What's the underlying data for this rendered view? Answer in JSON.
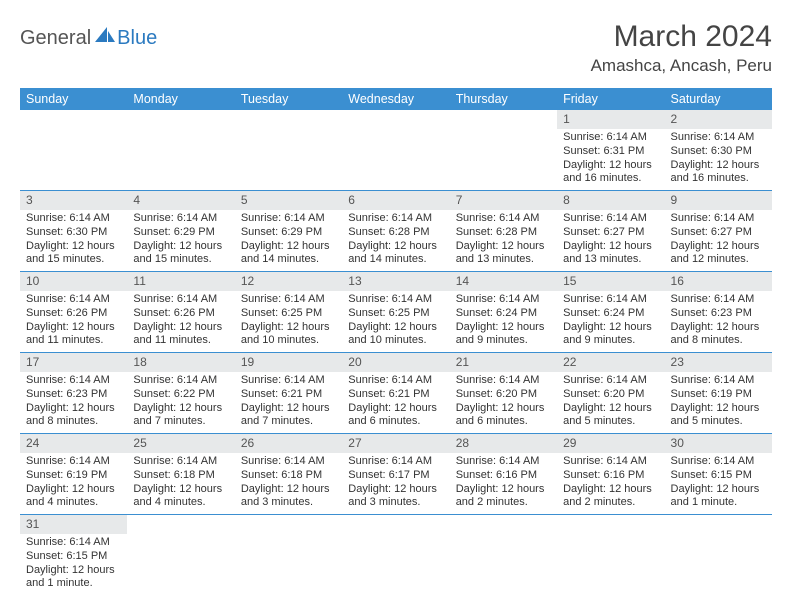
{
  "logo": {
    "text1": "General",
    "text2": "Blue"
  },
  "title": "March 2024",
  "location": "Amashca, Ancash, Peru",
  "colors": {
    "header_bg": "#3b8fd1",
    "header_text": "#ffffff",
    "daynum_bg": "#e7e9ea",
    "cell_border": "#3b8fd1",
    "logo_blue": "#2b7ac0"
  },
  "typography": {
    "title_fontsize": 30,
    "location_fontsize": 17,
    "header_fontsize": 12.5,
    "cell_fontsize": 11
  },
  "weekdays": [
    "Sunday",
    "Monday",
    "Tuesday",
    "Wednesday",
    "Thursday",
    "Friday",
    "Saturday"
  ],
  "weeks": [
    [
      {
        "day": "",
        "sunrise": "",
        "sunset": "",
        "daylight1": "",
        "daylight2": ""
      },
      {
        "day": "",
        "sunrise": "",
        "sunset": "",
        "daylight1": "",
        "daylight2": ""
      },
      {
        "day": "",
        "sunrise": "",
        "sunset": "",
        "daylight1": "",
        "daylight2": ""
      },
      {
        "day": "",
        "sunrise": "",
        "sunset": "",
        "daylight1": "",
        "daylight2": ""
      },
      {
        "day": "",
        "sunrise": "",
        "sunset": "",
        "daylight1": "",
        "daylight2": ""
      },
      {
        "day": "1",
        "sunrise": "Sunrise: 6:14 AM",
        "sunset": "Sunset: 6:31 PM",
        "daylight1": "Daylight: 12 hours",
        "daylight2": "and 16 minutes."
      },
      {
        "day": "2",
        "sunrise": "Sunrise: 6:14 AM",
        "sunset": "Sunset: 6:30 PM",
        "daylight1": "Daylight: 12 hours",
        "daylight2": "and 16 minutes."
      }
    ],
    [
      {
        "day": "3",
        "sunrise": "Sunrise: 6:14 AM",
        "sunset": "Sunset: 6:30 PM",
        "daylight1": "Daylight: 12 hours",
        "daylight2": "and 15 minutes."
      },
      {
        "day": "4",
        "sunrise": "Sunrise: 6:14 AM",
        "sunset": "Sunset: 6:29 PM",
        "daylight1": "Daylight: 12 hours",
        "daylight2": "and 15 minutes."
      },
      {
        "day": "5",
        "sunrise": "Sunrise: 6:14 AM",
        "sunset": "Sunset: 6:29 PM",
        "daylight1": "Daylight: 12 hours",
        "daylight2": "and 14 minutes."
      },
      {
        "day": "6",
        "sunrise": "Sunrise: 6:14 AM",
        "sunset": "Sunset: 6:28 PM",
        "daylight1": "Daylight: 12 hours",
        "daylight2": "and 14 minutes."
      },
      {
        "day": "7",
        "sunrise": "Sunrise: 6:14 AM",
        "sunset": "Sunset: 6:28 PM",
        "daylight1": "Daylight: 12 hours",
        "daylight2": "and 13 minutes."
      },
      {
        "day": "8",
        "sunrise": "Sunrise: 6:14 AM",
        "sunset": "Sunset: 6:27 PM",
        "daylight1": "Daylight: 12 hours",
        "daylight2": "and 13 minutes."
      },
      {
        "day": "9",
        "sunrise": "Sunrise: 6:14 AM",
        "sunset": "Sunset: 6:27 PM",
        "daylight1": "Daylight: 12 hours",
        "daylight2": "and 12 minutes."
      }
    ],
    [
      {
        "day": "10",
        "sunrise": "Sunrise: 6:14 AM",
        "sunset": "Sunset: 6:26 PM",
        "daylight1": "Daylight: 12 hours",
        "daylight2": "and 11 minutes."
      },
      {
        "day": "11",
        "sunrise": "Sunrise: 6:14 AM",
        "sunset": "Sunset: 6:26 PM",
        "daylight1": "Daylight: 12 hours",
        "daylight2": "and 11 minutes."
      },
      {
        "day": "12",
        "sunrise": "Sunrise: 6:14 AM",
        "sunset": "Sunset: 6:25 PM",
        "daylight1": "Daylight: 12 hours",
        "daylight2": "and 10 minutes."
      },
      {
        "day": "13",
        "sunrise": "Sunrise: 6:14 AM",
        "sunset": "Sunset: 6:25 PM",
        "daylight1": "Daylight: 12 hours",
        "daylight2": "and 10 minutes."
      },
      {
        "day": "14",
        "sunrise": "Sunrise: 6:14 AM",
        "sunset": "Sunset: 6:24 PM",
        "daylight1": "Daylight: 12 hours",
        "daylight2": "and 9 minutes."
      },
      {
        "day": "15",
        "sunrise": "Sunrise: 6:14 AM",
        "sunset": "Sunset: 6:24 PM",
        "daylight1": "Daylight: 12 hours",
        "daylight2": "and 9 minutes."
      },
      {
        "day": "16",
        "sunrise": "Sunrise: 6:14 AM",
        "sunset": "Sunset: 6:23 PM",
        "daylight1": "Daylight: 12 hours",
        "daylight2": "and 8 minutes."
      }
    ],
    [
      {
        "day": "17",
        "sunrise": "Sunrise: 6:14 AM",
        "sunset": "Sunset: 6:23 PM",
        "daylight1": "Daylight: 12 hours",
        "daylight2": "and 8 minutes."
      },
      {
        "day": "18",
        "sunrise": "Sunrise: 6:14 AM",
        "sunset": "Sunset: 6:22 PM",
        "daylight1": "Daylight: 12 hours",
        "daylight2": "and 7 minutes."
      },
      {
        "day": "19",
        "sunrise": "Sunrise: 6:14 AM",
        "sunset": "Sunset: 6:21 PM",
        "daylight1": "Daylight: 12 hours",
        "daylight2": "and 7 minutes."
      },
      {
        "day": "20",
        "sunrise": "Sunrise: 6:14 AM",
        "sunset": "Sunset: 6:21 PM",
        "daylight1": "Daylight: 12 hours",
        "daylight2": "and 6 minutes."
      },
      {
        "day": "21",
        "sunrise": "Sunrise: 6:14 AM",
        "sunset": "Sunset: 6:20 PM",
        "daylight1": "Daylight: 12 hours",
        "daylight2": "and 6 minutes."
      },
      {
        "day": "22",
        "sunrise": "Sunrise: 6:14 AM",
        "sunset": "Sunset: 6:20 PM",
        "daylight1": "Daylight: 12 hours",
        "daylight2": "and 5 minutes."
      },
      {
        "day": "23",
        "sunrise": "Sunrise: 6:14 AM",
        "sunset": "Sunset: 6:19 PM",
        "daylight1": "Daylight: 12 hours",
        "daylight2": "and 5 minutes."
      }
    ],
    [
      {
        "day": "24",
        "sunrise": "Sunrise: 6:14 AM",
        "sunset": "Sunset: 6:19 PM",
        "daylight1": "Daylight: 12 hours",
        "daylight2": "and 4 minutes."
      },
      {
        "day": "25",
        "sunrise": "Sunrise: 6:14 AM",
        "sunset": "Sunset: 6:18 PM",
        "daylight1": "Daylight: 12 hours",
        "daylight2": "and 4 minutes."
      },
      {
        "day": "26",
        "sunrise": "Sunrise: 6:14 AM",
        "sunset": "Sunset: 6:18 PM",
        "daylight1": "Daylight: 12 hours",
        "daylight2": "and 3 minutes."
      },
      {
        "day": "27",
        "sunrise": "Sunrise: 6:14 AM",
        "sunset": "Sunset: 6:17 PM",
        "daylight1": "Daylight: 12 hours",
        "daylight2": "and 3 minutes."
      },
      {
        "day": "28",
        "sunrise": "Sunrise: 6:14 AM",
        "sunset": "Sunset: 6:16 PM",
        "daylight1": "Daylight: 12 hours",
        "daylight2": "and 2 minutes."
      },
      {
        "day": "29",
        "sunrise": "Sunrise: 6:14 AM",
        "sunset": "Sunset: 6:16 PM",
        "daylight1": "Daylight: 12 hours",
        "daylight2": "and 2 minutes."
      },
      {
        "day": "30",
        "sunrise": "Sunrise: 6:14 AM",
        "sunset": "Sunset: 6:15 PM",
        "daylight1": "Daylight: 12 hours",
        "daylight2": "and 1 minute."
      }
    ],
    [
      {
        "day": "31",
        "sunrise": "Sunrise: 6:14 AM",
        "sunset": "Sunset: 6:15 PM",
        "daylight1": "Daylight: 12 hours",
        "daylight2": "and 1 minute."
      },
      {
        "day": "",
        "sunrise": "",
        "sunset": "",
        "daylight1": "",
        "daylight2": ""
      },
      {
        "day": "",
        "sunrise": "",
        "sunset": "",
        "daylight1": "",
        "daylight2": ""
      },
      {
        "day": "",
        "sunrise": "",
        "sunset": "",
        "daylight1": "",
        "daylight2": ""
      },
      {
        "day": "",
        "sunrise": "",
        "sunset": "",
        "daylight1": "",
        "daylight2": ""
      },
      {
        "day": "",
        "sunrise": "",
        "sunset": "",
        "daylight1": "",
        "daylight2": ""
      },
      {
        "day": "",
        "sunrise": "",
        "sunset": "",
        "daylight1": "",
        "daylight2": ""
      }
    ]
  ]
}
